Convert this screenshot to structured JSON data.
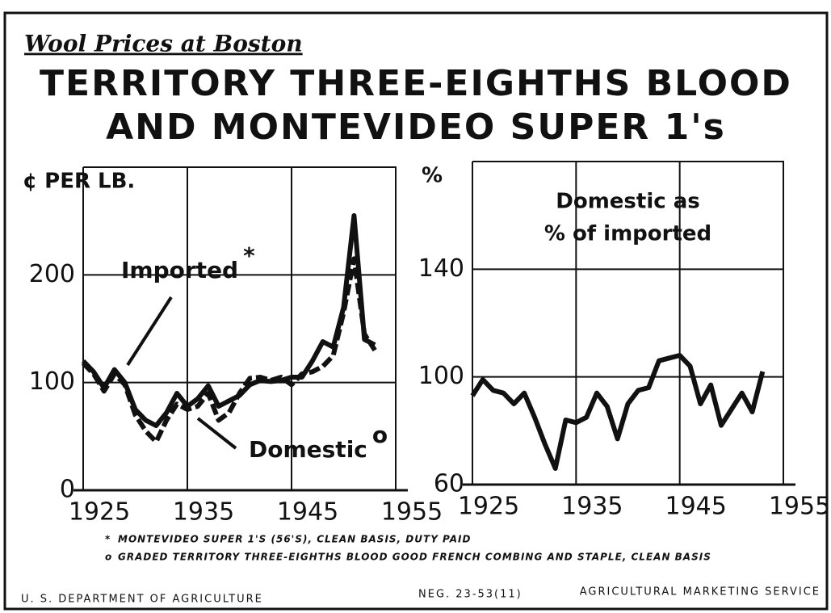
{
  "header": {
    "subtitle": "Wool Prices at Boston",
    "title": [
      "TERRITORY THREE-EIGHTHS BLOOD",
      "AND MONTEVIDEO SUPER 1's"
    ]
  },
  "chart_data": [
    {
      "type": "line",
      "y_label": "¢ PER LB.",
      "x": [
        1925,
        1926,
        1927,
        1928,
        1929,
        1930,
        1931,
        1932,
        1933,
        1934,
        1935,
        1936,
        1937,
        1938,
        1939,
        1940,
        1941,
        1942,
        1943,
        1944,
        1945,
        1946,
        1947,
        1948,
        1949,
        1950,
        1951,
        1952,
        1953
      ],
      "series": [
        {
          "name": "Imported",
          "color": "#111111",
          "style": "solid",
          "values": [
            120,
            110,
            95,
            112,
            100,
            75,
            65,
            60,
            72,
            90,
            78,
            85,
            97,
            78,
            83,
            88,
            98,
            102,
            101,
            102,
            105,
            105,
            120,
            138,
            133,
            170,
            255,
            140,
            135
          ]
        },
        {
          "name": "Domestic",
          "color": "#111111",
          "style": "dashed",
          "values": [
            118,
            108,
            92,
            108,
            98,
            70,
            55,
            45,
            65,
            80,
            75,
            78,
            90,
            65,
            72,
            90,
            104,
            105,
            102,
            105,
            98,
            108,
            110,
            115,
            125,
            165,
            215,
            145,
            130
          ]
        }
      ],
      "annotations": [
        {
          "text": "Imported",
          "mark": "*"
        },
        {
          "text": "Domestic",
          "mark": "o"
        }
      ],
      "xlim": [
        1925,
        1955
      ],
      "xticks": [
        1925,
        1935,
        1945,
        1955
      ],
      "ylim": [
        0,
        300
      ],
      "yticks": [
        0,
        100,
        200
      ],
      "grid": true
    },
    {
      "type": "line",
      "y_label": "%",
      "title": [
        "Domestic as",
        "% of imported"
      ],
      "x": [
        1925,
        1926,
        1927,
        1928,
        1929,
        1930,
        1931,
        1932,
        1933,
        1934,
        1935,
        1936,
        1937,
        1938,
        1939,
        1940,
        1941,
        1942,
        1943,
        1944,
        1945,
        1946,
        1947,
        1948,
        1949,
        1950,
        1951,
        1952,
        1953
      ],
      "series": [
        {
          "name": "Domestic as % of imported",
          "color": "#111111",
          "style": "solid",
          "values": [
            93,
            99,
            95,
            94,
            90,
            94,
            85,
            75,
            66,
            84,
            83,
            85,
            94,
            89,
            77,
            90,
            95,
            96,
            106,
            107,
            108,
            104,
            90,
            97,
            82,
            88,
            94,
            87,
            102
          ]
        }
      ],
      "xlim": [
        1925,
        1955
      ],
      "xticks": [
        1925,
        1935,
        1945,
        1955
      ],
      "ylim": [
        60,
        180
      ],
      "yticks": [
        60,
        100,
        140
      ],
      "grid": true
    }
  ],
  "footnotes": [
    {
      "symbol": "*",
      "text": "MONTEVIDEO SUPER 1'S (56'S), CLEAN BASIS, DUTY PAID"
    },
    {
      "symbol": "o",
      "text": "GRADED TERRITORY THREE-EIGHTHS BLOOD GOOD FRENCH COMBING AND STAPLE, CLEAN BASIS"
    }
  ],
  "footer": {
    "left": "U. S. DEPARTMENT OF AGRICULTURE",
    "negative": "NEG. 23-53(11)",
    "right": "AGRICULTURAL MARKETING SERVICE"
  }
}
